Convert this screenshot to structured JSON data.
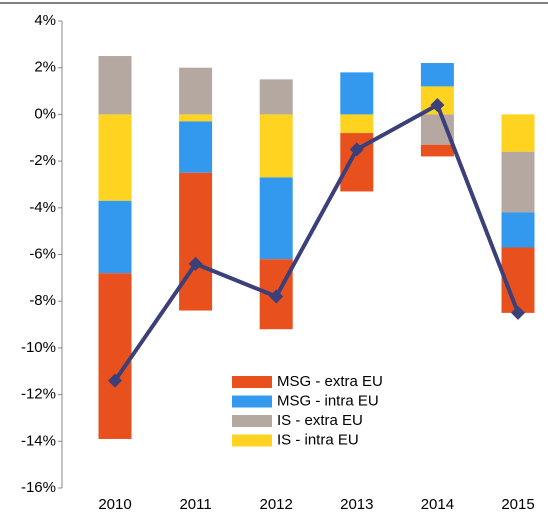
{
  "chart_data": {
    "type": "stacked_bar_line",
    "categories": [
      "2010",
      "2011",
      "2012",
      "2013",
      "2014",
      "2015"
    ],
    "series": [
      {
        "name": "IS - intra EU",
        "color": "#ffd320",
        "values": [
          -3.7,
          -0.3,
          -2.7,
          -0.8,
          1.2,
          -1.6
        ]
      },
      {
        "name": "IS - extra EU",
        "color": "#b5a8a0",
        "values": [
          2.5,
          2.0,
          1.5,
          0,
          -1.3,
          -2.6
        ]
      },
      {
        "name": "MSG - intra EU",
        "color": "#3399ee",
        "values": [
          -3.1,
          -2.2,
          -3.5,
          1.8,
          1.0,
          -1.5
        ]
      },
      {
        "name": "MSG - extra EU",
        "color": "#e8501e",
        "values": [
          -7.1,
          -5.9,
          -3.0,
          -2.5,
          -0.5,
          -2.8
        ]
      }
    ],
    "line": {
      "color": "#3b3f7a",
      "values": [
        -11.4,
        -6.4,
        -7.8,
        -1.5,
        0.4,
        -8.5
      ]
    },
    "ylim": [
      -16,
      4
    ],
    "yticks": [
      {
        "value": -16,
        "label": "-16%"
      },
      {
        "value": -14,
        "label": "-14%"
      },
      {
        "value": -12,
        "label": "-12%"
      },
      {
        "value": -10,
        "label": "-10%"
      },
      {
        "value": -8,
        "label": "-8%"
      },
      {
        "value": -6,
        "label": "-6%"
      },
      {
        "value": -4,
        "label": "-4%"
      },
      {
        "value": -2,
        "label": "-2%"
      },
      {
        "value": 0,
        "label": "0%"
      },
      {
        "value": 2,
        "label": "2%"
      },
      {
        "value": 4,
        "label": "4%"
      }
    ],
    "legend": "lower-center"
  }
}
